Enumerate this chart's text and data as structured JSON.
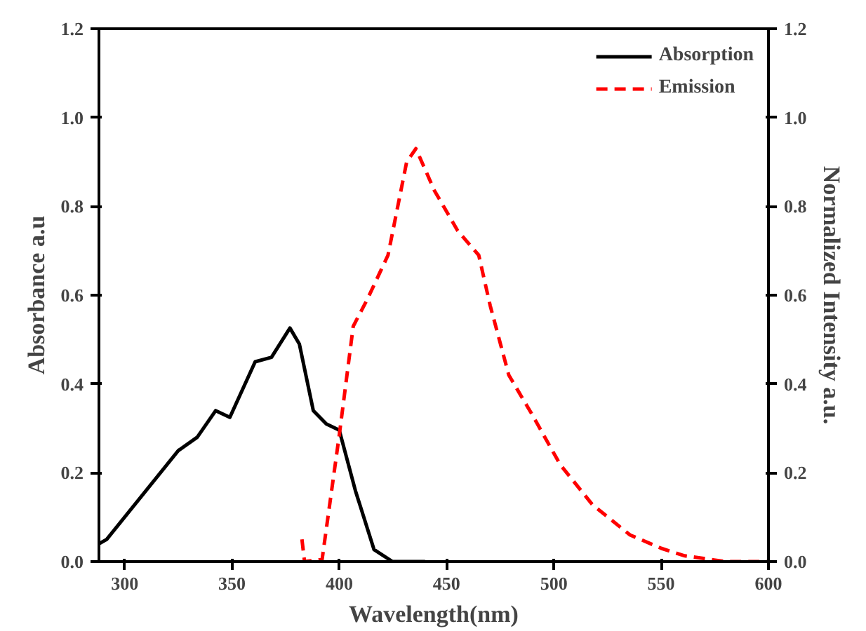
{
  "chart_data": {
    "type": "line",
    "xlabel": "Wavelength(nm)",
    "ylabel": "Absorbance a.u",
    "y2label": "Normalized Intensity a.u.",
    "xlim": [
      288,
      600
    ],
    "xticks": [
      300,
      350,
      400,
      450,
      500,
      550,
      600
    ],
    "ylim": [
      0,
      1.2
    ],
    "yticks": [
      {
        "value": 0,
        "label": "0.0"
      },
      {
        "value": 0.2,
        "label": "0.2"
      },
      {
        "value": 0.4,
        "label": "0.4"
      },
      {
        "value": 0.6,
        "label": "0.6"
      },
      {
        "value": 0.8,
        "label": "0.8"
      },
      {
        "value": 1.0,
        "label": "1.0"
      },
      {
        "value": 1.2,
        "label": "1.2"
      }
    ],
    "y2lim": [
      0,
      1.2
    ],
    "y2ticks": [
      {
        "value": 0,
        "label": "0.0"
      },
      {
        "value": 0.2,
        "label": "0.2"
      },
      {
        "value": 0.4,
        "label": "0.4"
      },
      {
        "value": 0.6,
        "label": "0.6"
      },
      {
        "value": 0.8,
        "label": "0.8"
      },
      {
        "value": 1.0,
        "label": "1.0"
      },
      {
        "value": 1.2,
        "label": "1.2"
      }
    ],
    "grid": false,
    "legend": "top right",
    "series": [
      {
        "name": "Absorption",
        "color": "#000000",
        "line_style": "solid",
        "x": [
          288,
          291.6,
          325,
          333.8,
          342.4,
          349,
          360.8,
          368.4,
          377,
          381.4,
          387.9,
          394,
          400,
          407.5,
          416.2,
          424.8,
          440
        ],
        "values": [
          0.04,
          0.05,
          0.25,
          0.28,
          0.34,
          0.325,
          0.45,
          0.46,
          0.526,
          0.49,
          0.34,
          0.31,
          0.296,
          0.16,
          0.027,
          0.0,
          0.0
        ]
      },
      {
        "name": "Emission",
        "color": "#ff0000",
        "line_style": "dashed",
        "x": [
          382.6,
          383.8,
          392,
          400,
          406.5,
          413,
          422.7,
          431.4,
          435.7,
          444.4,
          455.2,
          465,
          470.3,
          479,
          490,
          503,
          518,
          535.5,
          550,
          561,
          580,
          600
        ],
        "values": [
          0.05,
          0.0,
          0.005,
          0.285,
          0.53,
          0.59,
          0.69,
          0.9,
          0.93,
          0.835,
          0.745,
          0.69,
          0.577,
          0.42,
          0.33,
          0.218,
          0.128,
          0.06,
          0.03,
          0.013,
          0.0,
          0.0
        ]
      }
    ]
  }
}
